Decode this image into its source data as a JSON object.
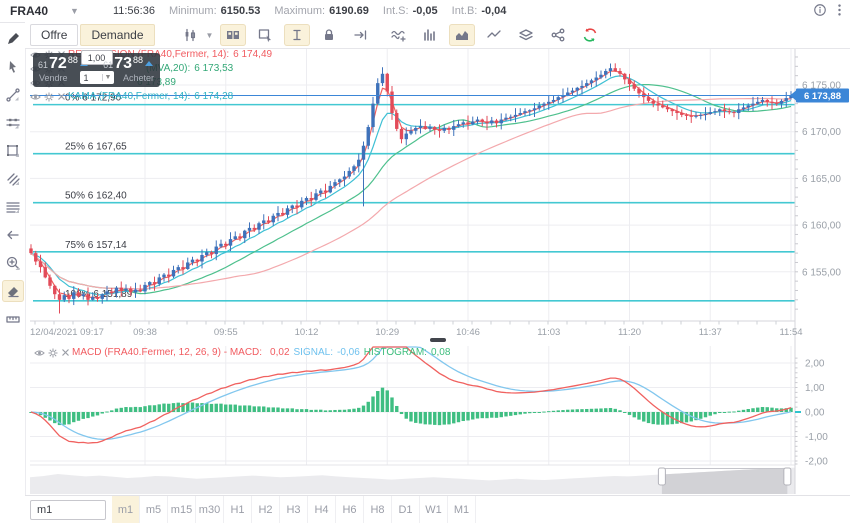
{
  "header": {
    "symbol": "FRA40",
    "time": "11:56:36",
    "min_label": "Minimum:",
    "min_value": "6150.53",
    "max_label": "Maximum:",
    "max_value": "6190.69",
    "ints_label": "Int.S:",
    "ints_value": "-0,05",
    "intb_label": "Int.B:",
    "intb_value": "-0,04"
  },
  "toolbar": {
    "offre_label": "Offre",
    "demande_label": "Demande"
  },
  "trade_widget": {
    "sell_small": "61",
    "sell_big": "72",
    "sell_sup": "88",
    "buy_small": "61",
    "buy_big": "73",
    "buy_sup": "88",
    "spread": "1,00",
    "sell_label": "Vendre",
    "buy_label": "Acheter",
    "quantity": "1"
  },
  "indicators": [
    {
      "label": "REGRESSION (FRA40,Fermer, 14):",
      "value": "6 174,49",
      "color": "#f15b60",
      "indent": 0
    },
    {
      "label": "(MVA,20):",
      "value": "6 173,53",
      "color": "#33a877",
      "indent": 78
    },
    {
      "label": "",
      "value": "6 173,89",
      "color": "#33a877",
      "indent": 65
    },
    {
      "label": "KAMA (FRA40,Fermer, 14):",
      "value": "6 174,28",
      "color": "#2fb3c4",
      "indent": 0
    }
  ],
  "macd_legend": {
    "prefix": "MACD (FRA40.Fermer, 12, 26, 9) - MACD:",
    "macd_value": "0,02",
    "signal_label": "SIGNAL:",
    "signal_value": "-0,06",
    "hist_label": "HISTOGRAM:",
    "hist_value": "0,08"
  },
  "time_axis": [
    "12/04/2021 09:17",
    "09:38",
    "09:55",
    "10:12",
    "10:29",
    "10:46",
    "11:03",
    "11:20",
    "11:37",
    "11:54"
  ],
  "price_axis": {
    "tick_labels": [
      "6 175,00",
      "6 170,00",
      "6 165,00",
      "6 160,00",
      "6 155,00"
    ],
    "current_label": "6 173,88"
  },
  "macd_axis": [
    "2,00",
    "1,00",
    "0,00",
    "-1,00",
    "-2,00"
  ],
  "timeframes": {
    "input_value": "m1",
    "active": "m1",
    "options": [
      "m1",
      "m5",
      "m15",
      "m30",
      "H1",
      "H2",
      "H3",
      "H4",
      "H6",
      "H8",
      "D1",
      "W1",
      "M1"
    ]
  },
  "colors": {
    "bull": "#3e72ba",
    "bear": "#e24b59",
    "fib": "#2fc3ce",
    "price_line": "#3b86d7",
    "grid": "#ededf1",
    "axis_text": "#9aa0a8",
    "regression": "#f0605f",
    "mva": "#4ec08d",
    "kama": "#3fc0d4",
    "slow_ma": "#f3a9ad",
    "macd_line": "#f0615f",
    "signal_line": "#82c7ee",
    "histogram": "#3fbe82",
    "active_bg": "#faf2db"
  },
  "chart_data": [
    {
      "type": "candlestick",
      "title": "FRA40 m1",
      "x_labels": [
        "12/04/2021 09:17",
        "09:38",
        "09:55",
        "10:12",
        "10:29",
        "10:46",
        "11:03",
        "11:20",
        "11:37",
        "11:54"
      ],
      "x_label_minutes": [
        3,
        24,
        41,
        58,
        75,
        92,
        109,
        126,
        143,
        160
      ],
      "y_tick_values": [
        6175,
        6170,
        6165,
        6160,
        6155
      ],
      "ylim": [
        6149.8,
        6179.0
      ],
      "last_price": 6173.88,
      "fib_levels": [
        {
          "label": "0% 6 172,90",
          "value": 6172.9
        },
        {
          "label": "25% 6 167,65",
          "value": 6167.65
        },
        {
          "label": "50% 6 162,40",
          "value": 6162.4
        },
        {
          "label": "75% 6 157,14",
          "value": 6157.14
        },
        {
          "label": "100% 6 151,89",
          "value": 6151.89
        }
      ],
      "closes": [
        6157.0,
        6156.1,
        6155.5,
        6154.4,
        6153.5,
        6152.6,
        6152.0,
        6152.5,
        6152.1,
        6152.8,
        6152.4,
        6152.6,
        6152.0,
        6152.3,
        6152.1,
        6152.6,
        6152.9,
        6152.7,
        6153.3,
        6153.0,
        6153.2,
        6152.8,
        6153.1,
        6152.9,
        6153.6,
        6153.9,
        6153.7,
        6154.4,
        6154.7,
        6154.5,
        6155.2,
        6155.5,
        6155.3,
        6156.0,
        6156.3,
        6156.1,
        6156.8,
        6157.1,
        6156.9,
        6157.7,
        6158.0,
        6157.8,
        6158.5,
        6158.8,
        6158.6,
        6159.4,
        6159.7,
        6159.5,
        6160.2,
        6160.5,
        6160.3,
        6161.0,
        6161.3,
        6161.1,
        6161.8,
        6162.1,
        6161.9,
        6162.6,
        6162.9,
        6162.7,
        6163.4,
        6163.7,
        6163.5,
        6164.2,
        6164.6,
        6164.9,
        6165.2,
        6165.8,
        6166.3,
        6167.0,
        6168.5,
        6170.5,
        6173.0,
        6175.2,
        6176.2,
        6174.3,
        6172.0,
        6170.3,
        6169.2,
        6169.8,
        6170.1,
        6170.4,
        6170.6,
        6170.3,
        6170.5,
        6170.2,
        6170.1,
        6170.4,
        6170.2,
        6170.6,
        6170.8,
        6171.0,
        6170.8,
        6171.1,
        6171.3,
        6171.1,
        6170.9,
        6171.2,
        6170.9,
        6171.3,
        6171.5,
        6171.6,
        6171.8,
        6172.0,
        6172.2,
        6172.3,
        6172.5,
        6172.8,
        6173.0,
        6173.2,
        6173.4,
        6173.7,
        6173.9,
        6174.2,
        6174.4,
        6174.7,
        6174.9,
        6175.2,
        6175.5,
        6175.8,
        6176.1,
        6176.5,
        6176.8,
        6176.5,
        6176.2,
        6175.6,
        6175.1,
        6174.6,
        6174.1,
        6173.7,
        6173.3,
        6173.0,
        6172.8,
        6172.6,
        6172.4,
        6172.2,
        6172.0,
        6171.8,
        6171.7,
        6171.6,
        6171.7,
        6171.8,
        6171.9,
        6172.1,
        6172.2,
        6172.4,
        6172.2,
        6172.1,
        6172.0,
        6172.4,
        6172.6,
        6172.8,
        6173.0,
        6173.2,
        6173.4,
        6173.2,
        6173.1,
        6173.0,
        6173.3,
        6173.6,
        6173.9
      ],
      "specials": {
        "6": {
          "low": 6150.53
        },
        "70": {
          "low": 6162.0
        },
        "74": {
          "high": 6176.9
        },
        "122": {
          "high": 6177.3
        }
      },
      "overlays": [
        {
          "name": "REGRESSION",
          "kind": "ema",
          "period": 3,
          "colorKey": "regression"
        },
        {
          "name": "MVA20",
          "kind": "sma",
          "period": 20,
          "colorKey": "mva"
        },
        {
          "name": "KAMA",
          "kind": "ema",
          "period": 8,
          "colorKey": "kama"
        },
        {
          "name": "MVA-slow",
          "kind": "sma",
          "period": 45,
          "colorKey": "slow_ma"
        }
      ]
    },
    {
      "type": "macd",
      "params": [
        12,
        26,
        9
      ],
      "displayed": {
        "macd": "0,02",
        "signal": "-0,06",
        "histogram": "0,08"
      },
      "y_tick_values": [
        2,
        1,
        0,
        -1,
        -2
      ],
      "ylim": [
        -2.45,
        2.45
      ]
    },
    {
      "type": "navigator",
      "values": [
        0.42,
        0.45,
        0.5,
        0.47,
        0.44,
        0.46,
        0.43,
        0.4,
        0.42,
        0.45,
        0.44,
        0.41,
        0.38,
        0.4,
        0.42,
        0.44,
        0.46,
        0.44,
        0.42,
        0.43,
        0.45,
        0.47,
        0.44,
        0.42,
        0.4,
        0.38,
        0.36,
        0.38,
        0.4,
        0.42,
        0.4,
        0.38,
        0.36,
        0.34,
        0.36,
        0.38,
        0.36,
        0.35,
        0.37,
        0.39,
        0.41,
        0.43,
        0.45,
        0.44,
        0.46,
        0.48,
        0.5,
        0.52,
        0.54,
        0.56,
        0.58,
        0.6,
        0.62,
        0.63,
        0.65,
        0.66
      ],
      "selection": [
        0.826,
        0.99
      ]
    }
  ]
}
